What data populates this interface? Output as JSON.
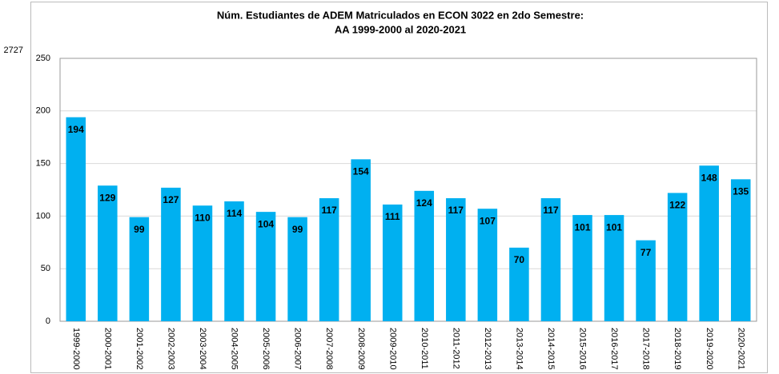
{
  "chart_data": {
    "type": "bar",
    "title": [
      "Núm. Estudiantes de ADEM Matriculados en ECON 3022 en 2do Semestre:",
      "AA 1999-2000 al 2020-2021"
    ],
    "annotation": "2727",
    "categories": [
      "1999-2000",
      "2000-2001",
      "2001-2002",
      "2002-2003",
      "2003-2004",
      "2004-2005",
      "2005-2006",
      "2006-2007",
      "2007-2008",
      "2008-2009",
      "2009-2010",
      "2010-2011",
      "2011-2012",
      "2012-2013",
      "2013-2014",
      "2014-2015",
      "2015-2016",
      "2016-2017",
      "2017-2018",
      "2018-2019",
      "2019-2020",
      "2020-2021"
    ],
    "values": [
      194,
      129,
      99,
      127,
      110,
      114,
      104,
      99,
      117,
      154,
      111,
      124,
      117,
      107,
      70,
      117,
      101,
      101,
      77,
      122,
      148,
      135
    ],
    "color": "#00b0f0",
    "ylim": [
      0,
      250
    ],
    "yticks": [
      0,
      50,
      100,
      150,
      200,
      250
    ],
    "grid": true
  }
}
